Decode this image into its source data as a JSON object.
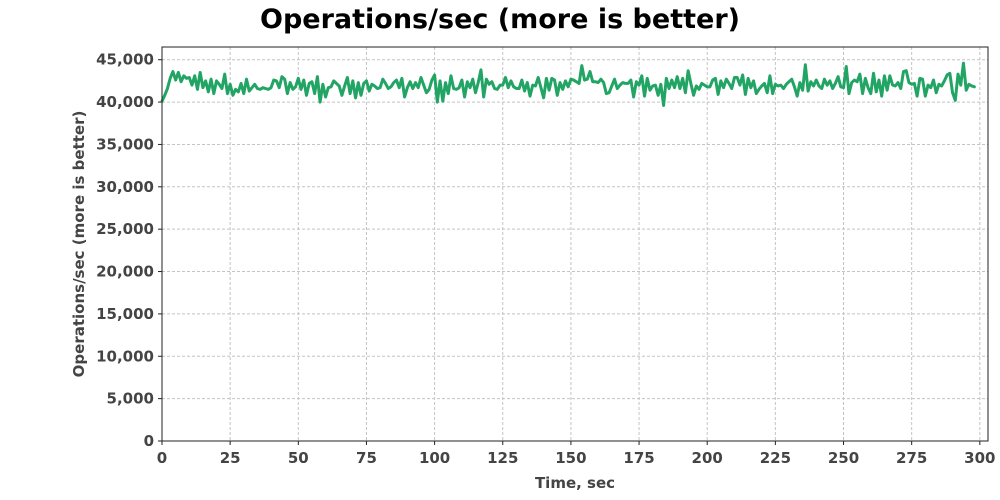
{
  "chart_data": {
    "type": "line",
    "title": "Operations/sec (more is better)",
    "xlabel": "Time, sec",
    "ylabel": "Operations/sec (more is better)",
    "xlim": [
      0,
      303
    ],
    "ylim": [
      0,
      46500
    ],
    "xticks": [
      0,
      25,
      50,
      75,
      100,
      125,
      150,
      175,
      200,
      225,
      250,
      275,
      300
    ],
    "xtick_labels": [
      "0",
      "25",
      "50",
      "75",
      "100",
      "125",
      "150",
      "175",
      "200",
      "225",
      "250",
      "275",
      "300"
    ],
    "yticks": [
      0,
      5000,
      10000,
      15000,
      20000,
      25000,
      30000,
      35000,
      40000,
      45000
    ],
    "ytick_labels": [
      "0",
      "5,000",
      "10,000",
      "15,000",
      "20,000",
      "25,000",
      "30,000",
      "35,000",
      "40,000",
      "45,000"
    ],
    "grid": true,
    "line_color": "#22a564",
    "series": [
      {
        "x_start": 0,
        "x_step": 1,
        "values": [
          40100,
          40800,
          41600,
          42800,
          43600,
          42600,
          43500,
          42400,
          43100,
          42800,
          42900,
          42000,
          43100,
          41500,
          43500,
          41700,
          42500,
          41200,
          42700,
          41000,
          42500,
          42100,
          41600,
          43300,
          41000,
          42100,
          40800,
          41500,
          41200,
          42200,
          41000,
          42700,
          41300,
          41700,
          42100,
          41600,
          41500,
          41700,
          41600,
          41500,
          41700,
          42600,
          42500,
          41700,
          43000,
          42700,
          41000,
          42300,
          41500,
          41800,
          42800,
          41500,
          42600,
          40800,
          42200,
          42400,
          41000,
          43000,
          40000,
          42100,
          40600,
          41700,
          41800,
          42500,
          42200,
          41900,
          40800,
          41900,
          42900,
          41000,
          42500,
          40500,
          42300,
          40800,
          42200,
          42500,
          41300,
          42100,
          41900,
          41600,
          41700,
          42700,
          42200,
          41600,
          41800,
          42300,
          42600,
          41700,
          42800,
          40600,
          41700,
          42400,
          41600,
          42300,
          41700,
          42900,
          42000,
          41100,
          41500,
          42600,
          43200,
          40000,
          42500,
          40100,
          42300,
          41000,
          43100,
          41600,
          41500,
          41700,
          42600,
          40600,
          42400,
          41700,
          42700,
          41100,
          42300,
          43800,
          40600,
          42700,
          42100,
          42400,
          41600,
          41500,
          42000,
          42000,
          42900,
          41700,
          42500,
          41800,
          41600,
          41600,
          42600,
          41300,
          42300,
          40700,
          42000,
          41900,
          42900,
          41700,
          40500,
          42800,
          41400,
          42800,
          42600,
          40800,
          42300,
          41500,
          42500,
          41800,
          42700,
          42600,
          42400,
          42200,
          44300,
          42600,
          42700,
          43600,
          42400,
          42400,
          42300,
          42700,
          42300,
          41000,
          41100,
          41900,
          42700,
          41600,
          42000,
          42300,
          42200,
          42200,
          42600,
          40600,
          42400,
          42000,
          43100,
          40700,
          42800,
          41400,
          41900,
          42000,
          40800,
          42100,
          39600,
          42800,
          41600,
          42600,
          41700,
          43000,
          41600,
          42800,
          41100,
          43700,
          42200,
          40800,
          41900,
          41500,
          42200,
          42000,
          41800,
          41800,
          42600,
          42800,
          40900,
          42500,
          41700,
          42700,
          42200,
          41600,
          42900,
          42900,
          42000,
          43200,
          40900,
          42800,
          41700,
          42500,
          41000,
          41500,
          41900,
          42200,
          41100,
          43100,
          41000,
          42100,
          41900,
          42000,
          41600,
          42100,
          42400,
          42700,
          41800,
          40700,
          42300,
          41400,
          44400,
          41300,
          42400,
          41900,
          42600,
          41900,
          41600,
          42700,
          42000,
          42500,
          41600,
          42200,
          43000,
          41800,
          41700,
          44200,
          41000,
          42300,
          42600,
          42400,
          43300,
          41000,
          42800,
          41700,
          41000,
          43400,
          41200,
          42600,
          40700,
          43100,
          41400,
          43100,
          42000,
          41900,
          42300,
          41600,
          43600,
          43700,
          42300,
          42100,
          42200,
          40700,
          42800,
          42700,
          40700,
          42000,
          41700,
          42600,
          41100,
          42100,
          41900,
          42500,
          43200,
          43400,
          41100,
          40200,
          43300,
          42000,
          44600,
          41400,
          42100,
          41900,
          41800
        ]
      }
    ]
  }
}
